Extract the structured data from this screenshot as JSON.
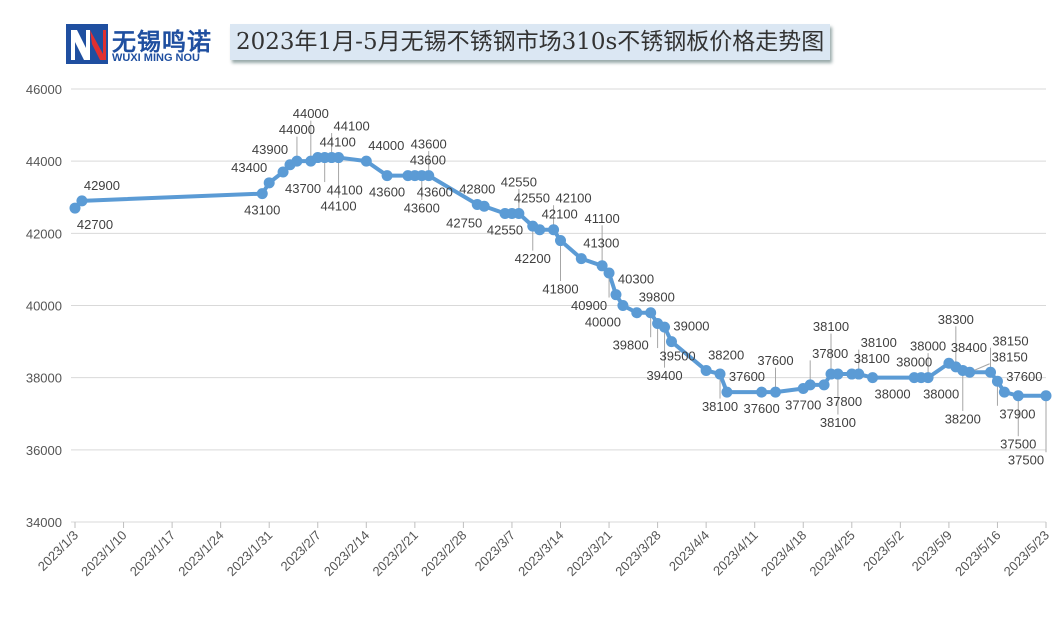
{
  "logo": {
    "name_cn": "无锡鸣诺",
    "name_en": "WUXI MING NOU"
  },
  "colors": {
    "series": "#5b9bd5",
    "grid": "#d9d9d9",
    "leader": "#a6a6a6",
    "logo_blue": "#1f4fa0",
    "logo_red": "#e03030"
  },
  "chart_data": {
    "type": "line",
    "title": "2023年1月-5月无锡不锈钢市场310s不锈钢板价格走势图",
    "xlabel": "",
    "ylabel": "",
    "ylim": [
      34000,
      46000
    ],
    "yticks": [
      "34000",
      "36000",
      "38000",
      "40000",
      "42000",
      "44000",
      "46000"
    ],
    "xticks": [
      "2023/1/3",
      "2023/1/10",
      "2023/1/17",
      "2023/1/24",
      "2023/1/31",
      "2023/2/7",
      "2023/2/14",
      "2023/2/21",
      "2023/2/28",
      "2023/3/7",
      "2023/3/14",
      "2023/3/21",
      "2023/3/28",
      "2023/4/4",
      "2023/4/11",
      "2023/4/18",
      "2023/4/25",
      "2023/5/2",
      "2023/5/9",
      "2023/5/16",
      "2023/5/23"
    ],
    "xlim": [
      "2023/1/3",
      "2023/5/23"
    ],
    "grid": "horizontal",
    "legend": "none",
    "data_labels": true,
    "x": [
      "2023/1/3",
      "2023/1/4",
      "2023/1/30",
      "2023/1/31",
      "2023/2/2",
      "2023/2/3",
      "2023/2/4",
      "2023/2/6",
      "2023/2/7",
      "2023/2/8",
      "2023/2/9",
      "2023/2/10",
      "2023/2/14",
      "2023/2/17",
      "2023/2/20",
      "2023/2/21",
      "2023/2/22",
      "2023/2/23",
      "2023/3/2",
      "2023/3/3",
      "2023/3/6",
      "2023/3/7",
      "2023/3/8",
      "2023/3/10",
      "2023/3/11",
      "2023/3/13",
      "2023/3/14",
      "2023/3/17",
      "2023/3/20",
      "2023/3/21",
      "2023/3/22",
      "2023/3/23",
      "2023/3/25",
      "2023/3/27",
      "2023/3/28",
      "2023/3/29",
      "2023/3/30",
      "2023/4/4",
      "2023/4/6",
      "2023/4/7",
      "2023/4/12",
      "2023/4/14",
      "2023/4/18",
      "2023/4/19",
      "2023/4/21",
      "2023/4/22",
      "2023/4/23",
      "2023/4/25",
      "2023/4/26",
      "2023/4/28",
      "2023/5/4",
      "2023/5/5",
      "2023/5/6",
      "2023/5/9",
      "2023/5/10",
      "2023/5/11",
      "2023/5/12",
      "2023/5/15",
      "2023/5/16",
      "2023/5/17",
      "2023/5/19",
      "2023/5/23"
    ],
    "values": [
      42700,
      42900,
      43100,
      43400,
      43700,
      43900,
      44000,
      44000,
      44100,
      44100,
      44100,
      44100,
      44000,
      43600,
      43600,
      43600,
      43600,
      43600,
      42800,
      42750,
      42550,
      42550,
      42550,
      42200,
      42100,
      42100,
      41800,
      41300,
      41100,
      40900,
      40300,
      40000,
      39800,
      39800,
      39500,
      39400,
      39000,
      38200,
      38100,
      37600,
      37600,
      37600,
      37700,
      37800,
      37800,
      38100,
      38100,
      38100,
      38100,
      38000,
      38000,
      38000,
      38000,
      38400,
      38300,
      38200,
      38150,
      38150,
      37900,
      37600,
      37500,
      37500
    ]
  }
}
